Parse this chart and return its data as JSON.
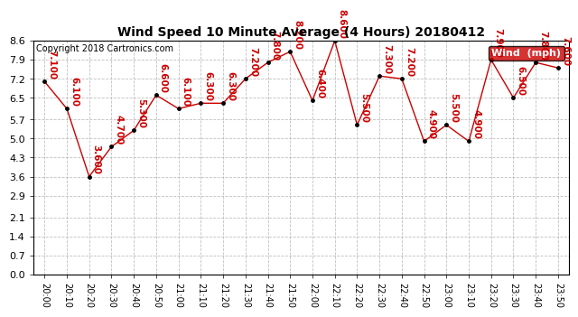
{
  "title": "Wind Speed 10 Minute Average (4 Hours) 20180412",
  "copyright": "Copyright 2018 Cartronics.com",
  "legend_label": "Wind  (mph)",
  "x_labels": [
    "20:00",
    "20:10",
    "20:20",
    "20:30",
    "20:40",
    "20:50",
    "21:00",
    "21:10",
    "21:20",
    "21:30",
    "21:40",
    "21:50",
    "22:00",
    "22:10",
    "22:20",
    "22:30",
    "22:40",
    "22:50",
    "23:00",
    "23:10",
    "23:20",
    "23:30",
    "23:40",
    "23:50"
  ],
  "y_values": [
    7.1,
    6.1,
    3.6,
    4.7,
    5.3,
    6.6,
    6.1,
    6.3,
    6.3,
    7.2,
    7.8,
    8.2,
    6.4,
    8.6,
    5.5,
    7.3,
    7.2,
    4.9,
    5.5,
    4.9,
    7.9,
    6.5,
    7.8,
    7.6
  ],
  "annotations": [
    "7.100",
    "6.100",
    "3.600",
    "4.700",
    "5.300",
    "6.600",
    "6.100",
    "6.300",
    "6.300",
    "7.200",
    "7.800",
    "8.200",
    "6.400",
    "8.600",
    "5.500",
    "7.300",
    "7.200",
    "4.900",
    "5.500",
    "4.900",
    "7.900",
    "6.500",
    "7.800",
    "7.600"
  ],
  "y_ticks": [
    0.0,
    0.7,
    1.4,
    2.1,
    2.9,
    3.6,
    4.3,
    5.0,
    5.7,
    6.5,
    7.2,
    7.9,
    8.6
  ],
  "ylim": [
    0.0,
    8.6
  ],
  "line_color": "#cc0000",
  "dot_color": "#000000",
  "bg_color": "#ffffff",
  "grid_color": "#b0b0b0",
  "label_color": "#cc0000",
  "legend_bg": "#cc0000",
  "legend_text_color": "#ffffff",
  "title_fontsize": 10,
  "copyright_fontsize": 7,
  "annotation_fontsize": 7.5,
  "tick_fontsize": 7,
  "ytick_fontsize": 8
}
